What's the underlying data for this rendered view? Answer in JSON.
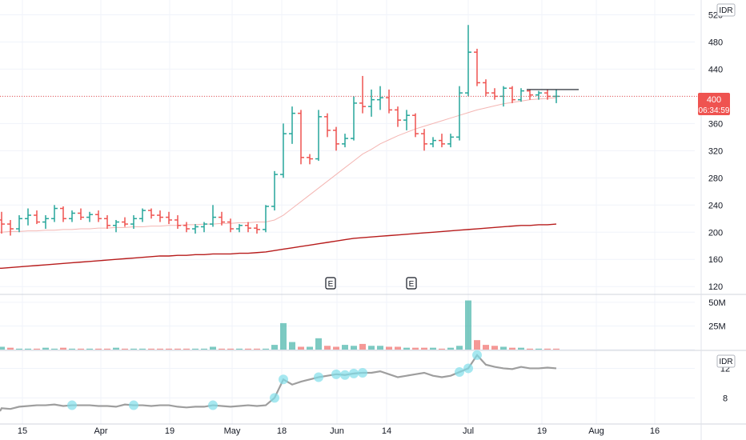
{
  "currency_badge": "IDR",
  "indicator_badge": "IDR",
  "price_axis_ticks": [
    "520",
    "480",
    "440",
    "400",
    "360",
    "320",
    "280",
    "240",
    "200",
    "160",
    "120"
  ],
  "volume_axis_ticks": [
    "50M",
    "25M"
  ],
  "indicator_axis_ticks": [
    "12",
    "8"
  ],
  "time_axis_ticks": [
    "15",
    "Apr",
    "19",
    "May",
    "18",
    "Jun",
    "14",
    "Jul",
    "19",
    "Aug",
    "16"
  ],
  "last_price": {
    "value": "400",
    "countdown": "06:34:59",
    "color": "#ef5350"
  },
  "earnings_markers": [
    "E",
    "E"
  ],
  "colors": {
    "up": "#26a69a",
    "down": "#ef5350",
    "ma_long": "#b71c1c",
    "ma_short": "#f4b6b3",
    "indicator_line": "#9e9e9e",
    "indicator_highlight": "#80deea",
    "grid": "#f0f3fa"
  },
  "chart_data": {
    "type": "ohlc",
    "title": "",
    "price_range": [
      112,
      530
    ],
    "series": [
      {
        "name": "",
        "kind": "ohlc",
        "ohlc": [
          [
            218,
            230,
            198,
            212
          ],
          [
            212,
            218,
            195,
            205
          ],
          [
            205,
            225,
            200,
            220
          ],
          [
            220,
            235,
            210,
            225
          ],
          [
            225,
            232,
            212,
            215
          ],
          [
            215,
            225,
            205,
            220
          ],
          [
            220,
            240,
            215,
            235
          ],
          [
            235,
            238,
            215,
            220
          ],
          [
            220,
            232,
            215,
            228
          ],
          [
            228,
            235,
            218,
            222
          ],
          [
            222,
            230,
            215,
            226
          ],
          [
            226,
            232,
            215,
            220
          ],
          [
            220,
            225,
            205,
            210
          ],
          [
            210,
            218,
            200,
            215
          ],
          [
            215,
            222,
            208,
            212
          ],
          [
            212,
            225,
            205,
            220
          ],
          [
            220,
            235,
            215,
            232
          ],
          [
            232,
            235,
            220,
            225
          ],
          [
            225,
            232,
            215,
            222
          ],
          [
            222,
            230,
            212,
            218
          ],
          [
            218,
            225,
            205,
            210
          ],
          [
            210,
            215,
            200,
            205
          ],
          [
            205,
            212,
            198,
            208
          ],
          [
            208,
            215,
            200,
            212
          ],
          [
            212,
            240,
            208,
            222
          ],
          [
            222,
            230,
            210,
            215
          ],
          [
            215,
            220,
            200,
            205
          ],
          [
            205,
            212,
            200,
            210
          ],
          [
            210,
            215,
            200,
            206
          ],
          [
            206,
            212,
            198,
            204
          ],
          [
            204,
            240,
            200,
            238
          ],
          [
            238,
            290,
            232,
            285
          ],
          [
            285,
            360,
            280,
            345
          ],
          [
            345,
            385,
            330,
            375
          ],
          [
            375,
            380,
            300,
            310
          ],
          [
            310,
            315,
            300,
            308
          ],
          [
            308,
            380,
            305,
            370
          ],
          [
            370,
            375,
            340,
            350
          ],
          [
            350,
            355,
            320,
            330
          ],
          [
            330,
            345,
            325,
            338
          ],
          [
            338,
            400,
            335,
            390
          ],
          [
            390,
            430,
            375,
            385
          ],
          [
            385,
            410,
            370,
            395
          ],
          [
            395,
            415,
            380,
            398
          ],
          [
            398,
            410,
            375,
            380
          ],
          [
            380,
            385,
            355,
            365
          ],
          [
            365,
            380,
            350,
            372
          ],
          [
            372,
            375,
            340,
            345
          ],
          [
            345,
            352,
            320,
            330
          ],
          [
            330,
            340,
            325,
            335
          ],
          [
            335,
            345,
            325,
            330
          ],
          [
            330,
            345,
            325,
            340
          ],
          [
            340,
            415,
            335,
            405
          ],
          [
            405,
            505,
            400,
            465
          ],
          [
            465,
            470,
            415,
            420
          ],
          [
            420,
            425,
            400,
            405
          ],
          [
            405,
            412,
            395,
            400
          ],
          [
            400,
            415,
            385,
            412
          ],
          [
            412,
            415,
            390,
            395
          ],
          [
            395,
            412,
            392,
            408
          ],
          [
            408,
            410,
            395,
            402
          ],
          [
            402,
            408,
            395,
            405
          ],
          [
            405,
            410,
            395,
            400
          ],
          [
            400,
            410,
            390,
            400
          ]
        ]
      },
      {
        "name": "",
        "kind": "line",
        "values": [
          200,
          201,
          201,
          202,
          202,
          203,
          203,
          204,
          204,
          205,
          205,
          206,
          206,
          207,
          207,
          208,
          208,
          209,
          209,
          210,
          210,
          211,
          211,
          212,
          212,
          213,
          213,
          214,
          214,
          215,
          215,
          218,
          225,
          235,
          245,
          255,
          265,
          275,
          285,
          295,
          305,
          315,
          322,
          330,
          336,
          342,
          347,
          352,
          356,
          360,
          364,
          368,
          372,
          376,
          380,
          383,
          386,
          389,
          391,
          393,
          395,
          396,
          397,
          398
        ]
      },
      {
        "name": "",
        "kind": "line",
        "values": [
          147,
          148,
          149,
          150,
          151,
          152,
          153,
          154,
          155,
          156,
          157,
          158,
          159,
          160,
          161,
          162,
          163,
          164,
          165,
          165,
          166,
          166,
          167,
          167,
          168,
          168,
          168,
          169,
          169,
          170,
          171,
          173,
          175,
          177,
          179,
          181,
          183,
          185,
          187,
          189,
          191,
          192,
          193,
          194,
          195,
          196,
          197,
          198,
          199,
          200,
          201,
          202,
          203,
          204,
          205,
          206,
          207,
          208,
          209,
          210,
          210,
          211,
          211,
          212
        ]
      }
    ],
    "volume": {
      "range": [
        0,
        55
      ],
      "unit": "M",
      "values": [
        3,
        2,
        1,
        1,
        1,
        2,
        1,
        2,
        1,
        1,
        1,
        1,
        1,
        2,
        1,
        1,
        1,
        1,
        1,
        1,
        1,
        1,
        1,
        1,
        3,
        1,
        1,
        1,
        1,
        1,
        1,
        5,
        28,
        8,
        3,
        3,
        12,
        4,
        3,
        5,
        4,
        6,
        4,
        4,
        3,
        3,
        2,
        2,
        2,
        2,
        1,
        2,
        4,
        52,
        10,
        5,
        4,
        3,
        2,
        2,
        1,
        1,
        1,
        1
      ],
      "up": [
        1,
        0,
        1,
        1,
        0,
        1,
        1,
        0,
        1,
        0,
        1,
        0,
        0,
        1,
        0,
        1,
        1,
        0,
        0,
        0,
        0,
        0,
        1,
        1,
        1,
        0,
        0,
        1,
        0,
        0,
        1,
        1,
        1,
        1,
        0,
        1,
        1,
        0,
        0,
        1,
        1,
        0,
        1,
        1,
        0,
        0,
        1,
        0,
        0,
        1,
        0,
        1,
        1,
        1,
        0,
        0,
        0,
        1,
        0,
        1,
        0,
        1,
        0,
        0
      ]
    },
    "indicator": {
      "range": [
        5,
        14
      ],
      "values": [
        6.6,
        6.5,
        6.8,
        6.9,
        7.0,
        7.0,
        7.1,
        6.9,
        7.0,
        7.0,
        7.0,
        6.9,
        6.9,
        6.8,
        7.1,
        7.0,
        7.0,
        6.9,
        7.0,
        7.0,
        6.8,
        6.7,
        6.8,
        6.8,
        7.0,
        6.9,
        6.8,
        6.9,
        7.0,
        6.9,
        7.0,
        8.0,
        10.5,
        9.8,
        10.2,
        10.5,
        10.8,
        11.0,
        11.2,
        11.1,
        11.3,
        11.4,
        11.4,
        11.6,
        11.2,
        10.8,
        11.0,
        11.2,
        11.4,
        11.0,
        10.8,
        11.0,
        11.5,
        12.0,
        13.8,
        12.5,
        12.2,
        12.0,
        11.9,
        12.2,
        12.0,
        12.0,
        12.1,
        12.0
      ],
      "highlighted": [
        8,
        15,
        24,
        31,
        32,
        36,
        38,
        39,
        40,
        41,
        52,
        53,
        54
      ]
    }
  }
}
